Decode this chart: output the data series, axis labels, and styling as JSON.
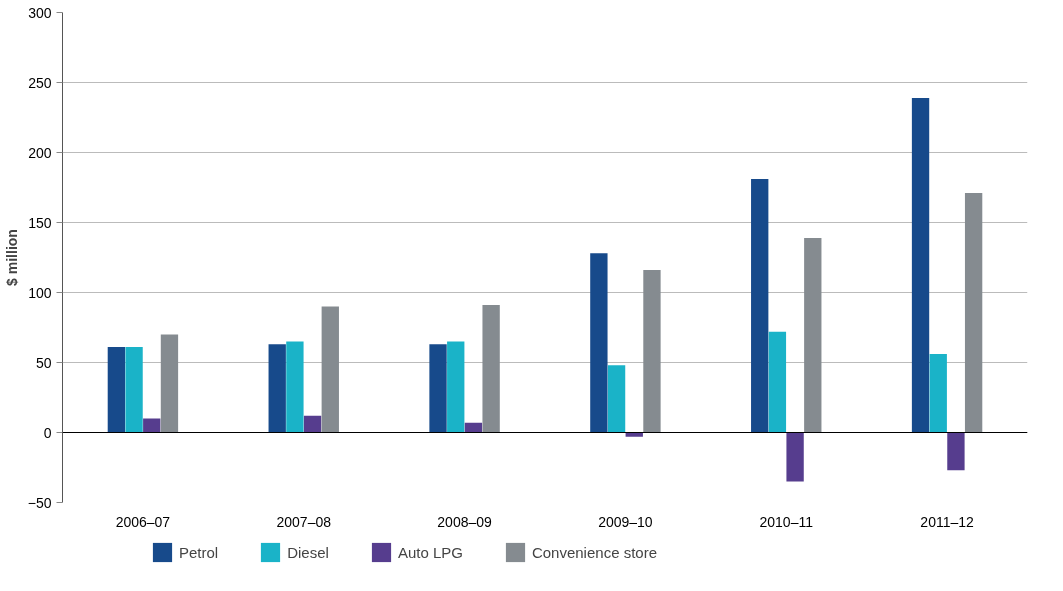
{
  "chart_data": {
    "type": "bar",
    "ylabel": "$ million",
    "categories": [
      "2006–07",
      "2007–08",
      "2008–09",
      "2009–10",
      "2010–11",
      "2011–12"
    ],
    "series": [
      {
        "name": "Petrol",
        "color": "#174a8b",
        "values": [
          61,
          63,
          63,
          128,
          181,
          239
        ]
      },
      {
        "name": "Diesel",
        "color": "#1ab3c8",
        "values": [
          61,
          65,
          65,
          48,
          72,
          56
        ]
      },
      {
        "name": "Auto LPG",
        "color": "#563d8e",
        "values": [
          10,
          12,
          7,
          -3,
          -35,
          -27
        ]
      },
      {
        "name": "Convenience store",
        "color": "#858b90",
        "values": [
          70,
          90,
          91,
          116,
          139,
          171
        ]
      }
    ],
    "ylim": [
      -50,
      300
    ],
    "yticks": [
      -50,
      0,
      50,
      100,
      150,
      200,
      250,
      300
    ],
    "grid": "y",
    "legend": "bottom"
  }
}
